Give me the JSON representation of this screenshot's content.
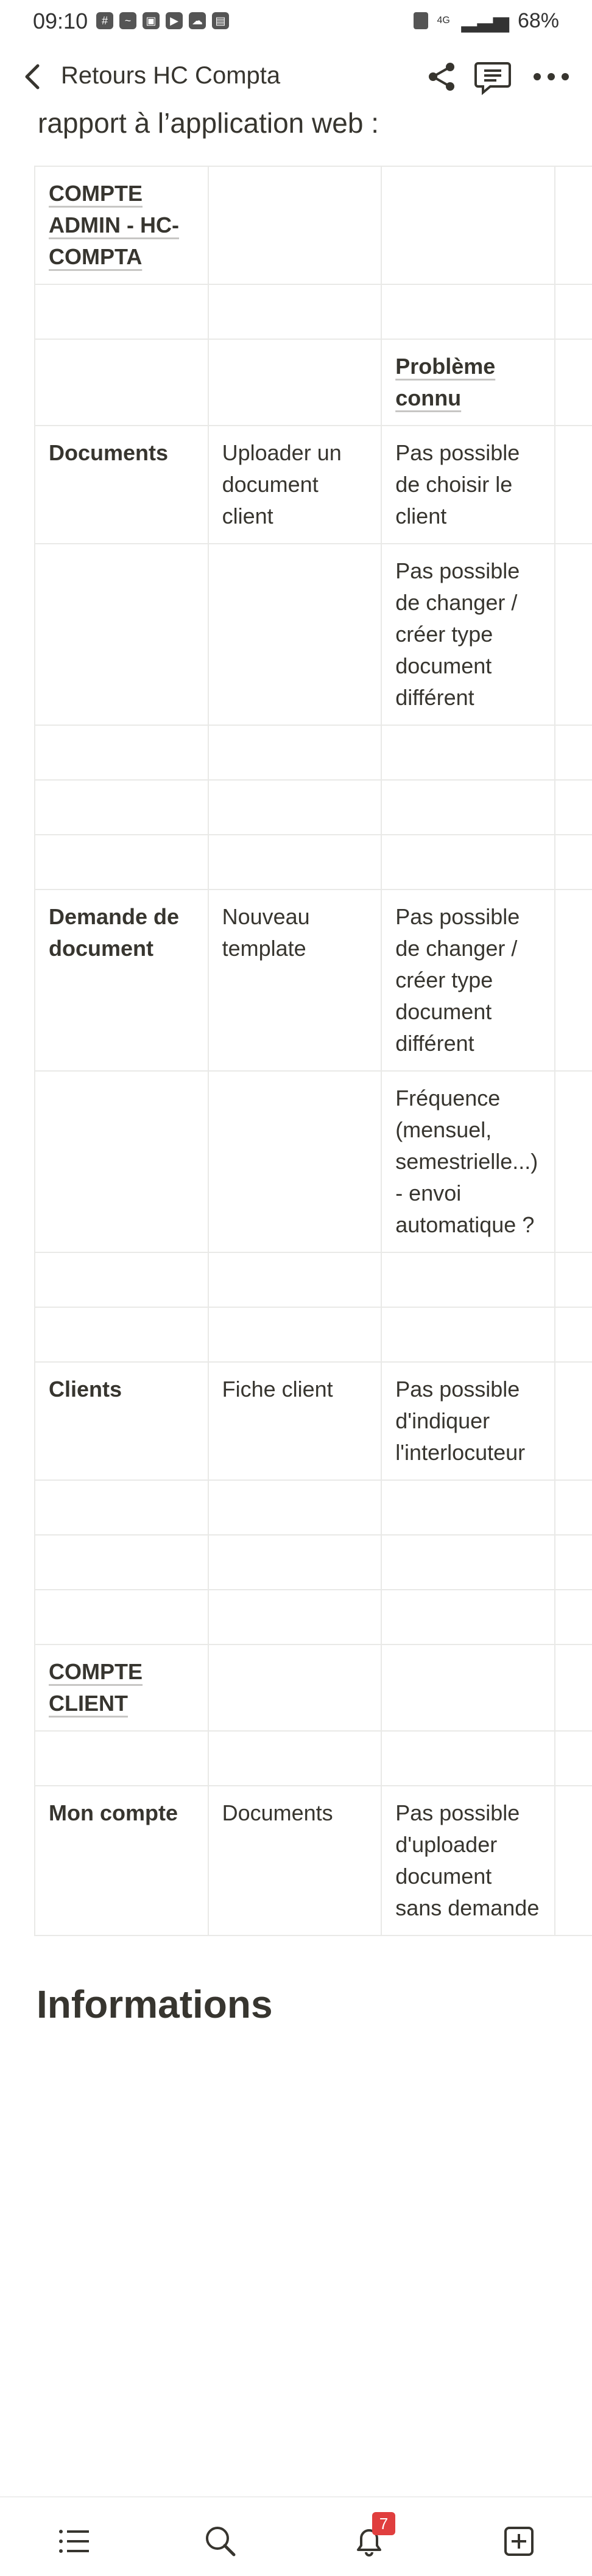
{
  "status_bar": {
    "time": "09:10",
    "battery": "68%",
    "network": "4G"
  },
  "app_bar": {
    "title": "Retours HC Compta"
  },
  "page": {
    "intro": "rapport à l’application web :",
    "rows": [
      [
        "COMPTE ADMIN - HC-COMPTA",
        "",
        "",
        ""
      ],
      [
        "",
        "",
        "",
        ""
      ],
      [
        "",
        "",
        "Problème connu",
        ""
      ],
      [
        "Documents",
        "Uploader un document client",
        "Pas possible de choisir le client",
        ""
      ],
      [
        "",
        "",
        "Pas possible de changer / créer type document différent",
        ""
      ],
      [
        "",
        "",
        "",
        ""
      ],
      [
        "",
        "",
        "",
        ""
      ],
      [
        "",
        "",
        "",
        ""
      ],
      [
        "Demande de document",
        "Nouveau template",
        "Pas possible de changer / créer type document différent",
        ""
      ],
      [
        "",
        "",
        "Fréquence (mensuel, semestrielle...) - envoi automatique ?",
        ""
      ],
      [
        "",
        "",
        "",
        ""
      ],
      [
        "",
        "",
        "",
        ""
      ],
      [
        "Clients",
        "Fiche client",
        "Pas possible d'indiquer l'interlocuteur",
        ""
      ],
      [
        "",
        "",
        "",
        ""
      ],
      [
        "",
        "",
        "",
        ""
      ],
      [
        "",
        "",
        "",
        ""
      ],
      [
        "COMPTE CLIENT",
        "",
        "",
        ""
      ],
      [
        "",
        "",
        "",
        ""
      ],
      [
        "Mon compte",
        "Documents",
        "Pas possible d'uploader document sans demande",
        ""
      ]
    ],
    "section_heading": "Informations"
  },
  "bottom_nav": {
    "notifications_badge": "7",
    "items": [
      "list-icon",
      "search-icon",
      "bell-icon",
      "add-page-icon"
    ]
  }
}
